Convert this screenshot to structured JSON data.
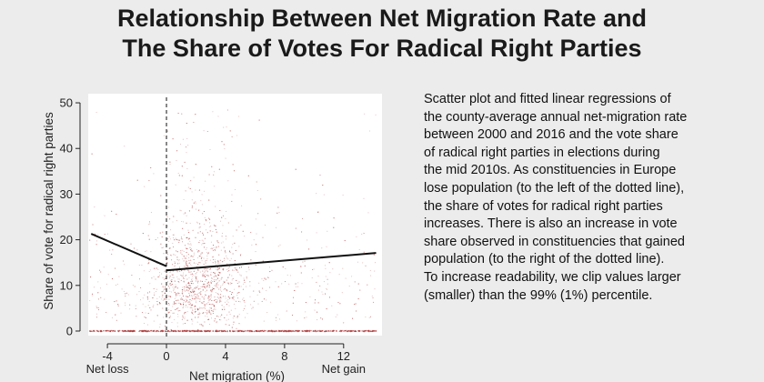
{
  "title_lines": [
    "Relationship Between Net Migration Rate and",
    "The Share of Votes For Radical Right Parties"
  ],
  "description": "Scatter plot and fitted linear regressions of\nthe county-average annual net-migration rate\nbetween 2000 and 2016 and the vote share\nof radical right parties in elections during\nthe mid 2010s. As constituencies in Europe\nlose population (to the left of the dotted line),\nthe share of votes for radical right parties\nincreases. There is also an increase in vote\nshare observed in constituencies that gained\npopulation (to the right of the dotted line).\nTo increase readability, we clip values larger\n(smaller) than the 99% (1%) percentile.",
  "colors": {
    "points": "#b03a3a",
    "fit_line": "#111111",
    "plot_bg": "#ffffff"
  },
  "chart_data": {
    "type": "scatter",
    "xlabel": "Net migration (%)",
    "ylabel": "Share of vote for radical right parties",
    "x_ticks": [
      -4,
      0,
      4,
      8,
      12
    ],
    "y_ticks": [
      0,
      10,
      20,
      30,
      40,
      50
    ],
    "x_annotations": [
      {
        "x": -4,
        "text": "Net loss"
      },
      {
        "x": 12,
        "text": "Net gain"
      }
    ],
    "xlim": [
      -5.3,
      14.6
    ],
    "ylim": [
      -1,
      52
    ],
    "vertical_reference_line": {
      "x": 0,
      "style": "dashed"
    },
    "fit_lines": [
      {
        "segment": "negative net migration",
        "x": [
          -5.1,
          0
        ],
        "y": [
          21.3,
          14.2
        ]
      },
      {
        "segment": "positive net migration",
        "x": [
          0,
          14.2
        ],
        "y": [
          13.3,
          17.1
        ]
      }
    ],
    "scatter_extent": {
      "x": [
        -5.2,
        14.2
      ],
      "y": [
        0,
        49
      ]
    },
    "grid": false,
    "legend": "none"
  }
}
